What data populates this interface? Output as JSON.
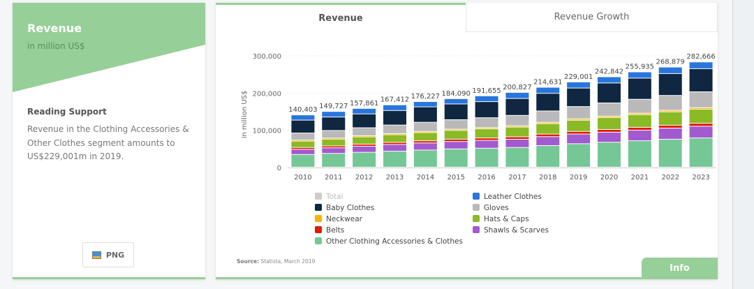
{
  "left_card": {
    "title": "Revenue",
    "subtitle": "in million US$",
    "reading_support_title": "Reading Support",
    "reading_support_text": "Revenue in the Clothing Accessories & Other Clothes segment amounts to US$229,001m in 2019.",
    "png_label": "PNG",
    "banner_color": "#96cf98"
  },
  "tabs": [
    {
      "label": "Revenue",
      "active": true
    },
    {
      "label": "Revenue Growth",
      "active": false
    }
  ],
  "source_label": "Source:",
  "source_text": " Statista, March 2019",
  "info_label": "Info",
  "chart_data": {
    "type": "bar",
    "stacked": true,
    "title": "",
    "xlabel": "",
    "ylabel": "in million US$",
    "ylim": [
      0,
      300000
    ],
    "yticks": [
      0,
      100000,
      200000,
      300000
    ],
    "ytick_labels": [
      "0",
      "100,000",
      "200,000",
      "300,000"
    ],
    "grid": true,
    "legend_position": "bottom",
    "categories": [
      "2010",
      "2011",
      "2012",
      "2013",
      "2014",
      "2015",
      "2016",
      "2017",
      "2018",
      "2019",
      "2020",
      "2021",
      "2022",
      "2023"
    ],
    "totals": [
      140403,
      149727,
      157861,
      167412,
      176227,
      184090,
      191655,
      200827,
      214631,
      229001,
      242842,
      255935,
      268879,
      282666
    ],
    "total_labels": [
      "140,403",
      "149,727",
      "157,861",
      "167,412",
      "176,227",
      "184,090",
      "191,655",
      "200,827",
      "214,631",
      "229,001",
      "242,842",
      "255,935",
      "268,879",
      "282,666"
    ],
    "legend": [
      {
        "name": "Total",
        "color": "#cccccc",
        "muted": true
      },
      {
        "name": "Leather Clothes",
        "color": "#2876dd"
      },
      {
        "name": "Baby Clothes",
        "color": "#0f2740"
      },
      {
        "name": "Gloves",
        "color": "#b9b9b9"
      },
      {
        "name": "Neckwear",
        "color": "#fcb100"
      },
      {
        "name": "Hats & Caps",
        "color": "#8aba25"
      },
      {
        "name": "Belts",
        "color": "#dd1c00"
      },
      {
        "name": "Shawls & Scarves",
        "color": "#a35acf"
      },
      {
        "name": "Other Clothing Accessories & Clothes",
        "color": "#75c796"
      }
    ],
    "series": [
      {
        "name": "Other Clothing Accessories & Clothes",
        "color": "#75c796",
        "values": [
          34000,
          37000,
          40000,
          43000,
          46000,
          49000,
          51000,
          53000,
          58000,
          63000,
          67000,
          71000,
          75000,
          78500
        ]
      },
      {
        "name": "Shawls & Scarves",
        "color": "#a35acf",
        "values": [
          14000,
          15000,
          16500,
          18000,
          19000,
          20000,
          21000,
          22000,
          24000,
          26000,
          27000,
          28500,
          30000,
          31500
        ]
      },
      {
        "name": "Belts",
        "color": "#dd1c00",
        "values": [
          5000,
          5200,
          5400,
          5600,
          5900,
          6200,
          6400,
          6600,
          6900,
          7100,
          7300,
          7500,
          7700,
          7900
        ]
      },
      {
        "name": "Hats & Caps",
        "color": "#8aba25",
        "values": [
          17000,
          18000,
          19500,
          20500,
          22000,
          23500,
          24500,
          26000,
          28000,
          30000,
          32000,
          34000,
          36000,
          38000
        ]
      },
      {
        "name": "Neckwear",
        "color": "#fcb100",
        "values": [
          2800,
          2900,
          3000,
          3100,
          3200,
          3300,
          3400,
          3500,
          3600,
          3700,
          3800,
          3900,
          4000,
          4100
        ]
      },
      {
        "name": "Gloves",
        "color": "#b9b9b9",
        "values": [
          19000,
          20500,
          21500,
          23000,
          24500,
          25500,
          26500,
          28000,
          30500,
          33000,
          35500,
          37500,
          40000,
          42500
        ]
      },
      {
        "name": "Baby Clothes",
        "color": "#0f2740",
        "values": [
          34603,
          36127,
          37161,
          39012,
          41427,
          42290,
          43255,
          45427,
          47331,
          49801,
          53542,
          56835,
          58779,
          62066
        ]
      },
      {
        "name": "Leather Clothes",
        "color": "#2876dd",
        "values": [
          14000,
          15000,
          14800,
          15200,
          14200,
          14300,
          15600,
          16300,
          16300,
          16400,
          16700,
          16700,
          17400,
          18100
        ]
      }
    ]
  }
}
